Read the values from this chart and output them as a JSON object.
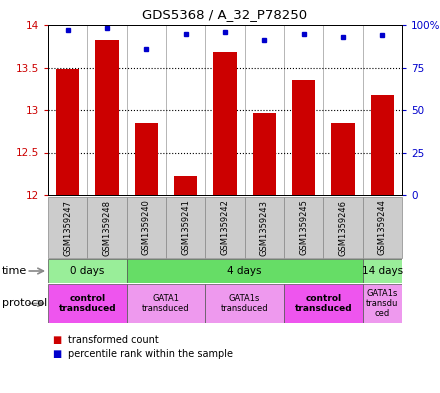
{
  "title": "GDS5368 / A_32_P78250",
  "samples": [
    "GSM1359247",
    "GSM1359248",
    "GSM1359240",
    "GSM1359241",
    "GSM1359242",
    "GSM1359243",
    "GSM1359245",
    "GSM1359246",
    "GSM1359244"
  ],
  "transformed_counts": [
    13.48,
    13.82,
    12.85,
    12.22,
    13.68,
    12.96,
    13.35,
    12.85,
    13.18
  ],
  "percentile_ranks": [
    97,
    98,
    86,
    95,
    96,
    91,
    95,
    93,
    94
  ],
  "ylim": [
    12,
    14
  ],
  "yticks": [
    12,
    12.5,
    13,
    13.5,
    14
  ],
  "ytick_labels": [
    "12",
    "12.5",
    "13",
    "13.5",
    "14"
  ],
  "y2ticks": [
    0,
    25,
    50,
    75,
    100
  ],
  "y2tick_labels": [
    "0",
    "25",
    "50",
    "75",
    "100%"
  ],
  "bar_color": "#cc0000",
  "dot_color": "#0000cc",
  "time_groups": [
    {
      "label": "0 days",
      "start": 0,
      "end": 2,
      "color": "#99ee99"
    },
    {
      "label": "4 days",
      "start": 2,
      "end": 8,
      "color": "#66dd66"
    },
    {
      "label": "14 days",
      "start": 8,
      "end": 9,
      "color": "#99ee99"
    }
  ],
  "protocol_groups": [
    {
      "label": "control\ntransduced",
      "start": 0,
      "end": 2,
      "color": "#ee55ee",
      "bold": true
    },
    {
      "label": "GATA1\ntransduced",
      "start": 2,
      "end": 4,
      "color": "#ee99ee",
      "bold": false
    },
    {
      "label": "GATA1s\ntransduced",
      "start": 4,
      "end": 6,
      "color": "#ee99ee",
      "bold": false
    },
    {
      "label": "control\ntransduced",
      "start": 6,
      "end": 8,
      "color": "#ee55ee",
      "bold": true
    },
    {
      "label": "GATA1s\ntransdu\nced",
      "start": 8,
      "end": 9,
      "color": "#ee99ee",
      "bold": false
    }
  ],
  "sample_area_color": "#cccccc",
  "background_color": "#ffffff",
  "fig_width": 4.4,
  "fig_height": 3.93,
  "dpi": 100
}
